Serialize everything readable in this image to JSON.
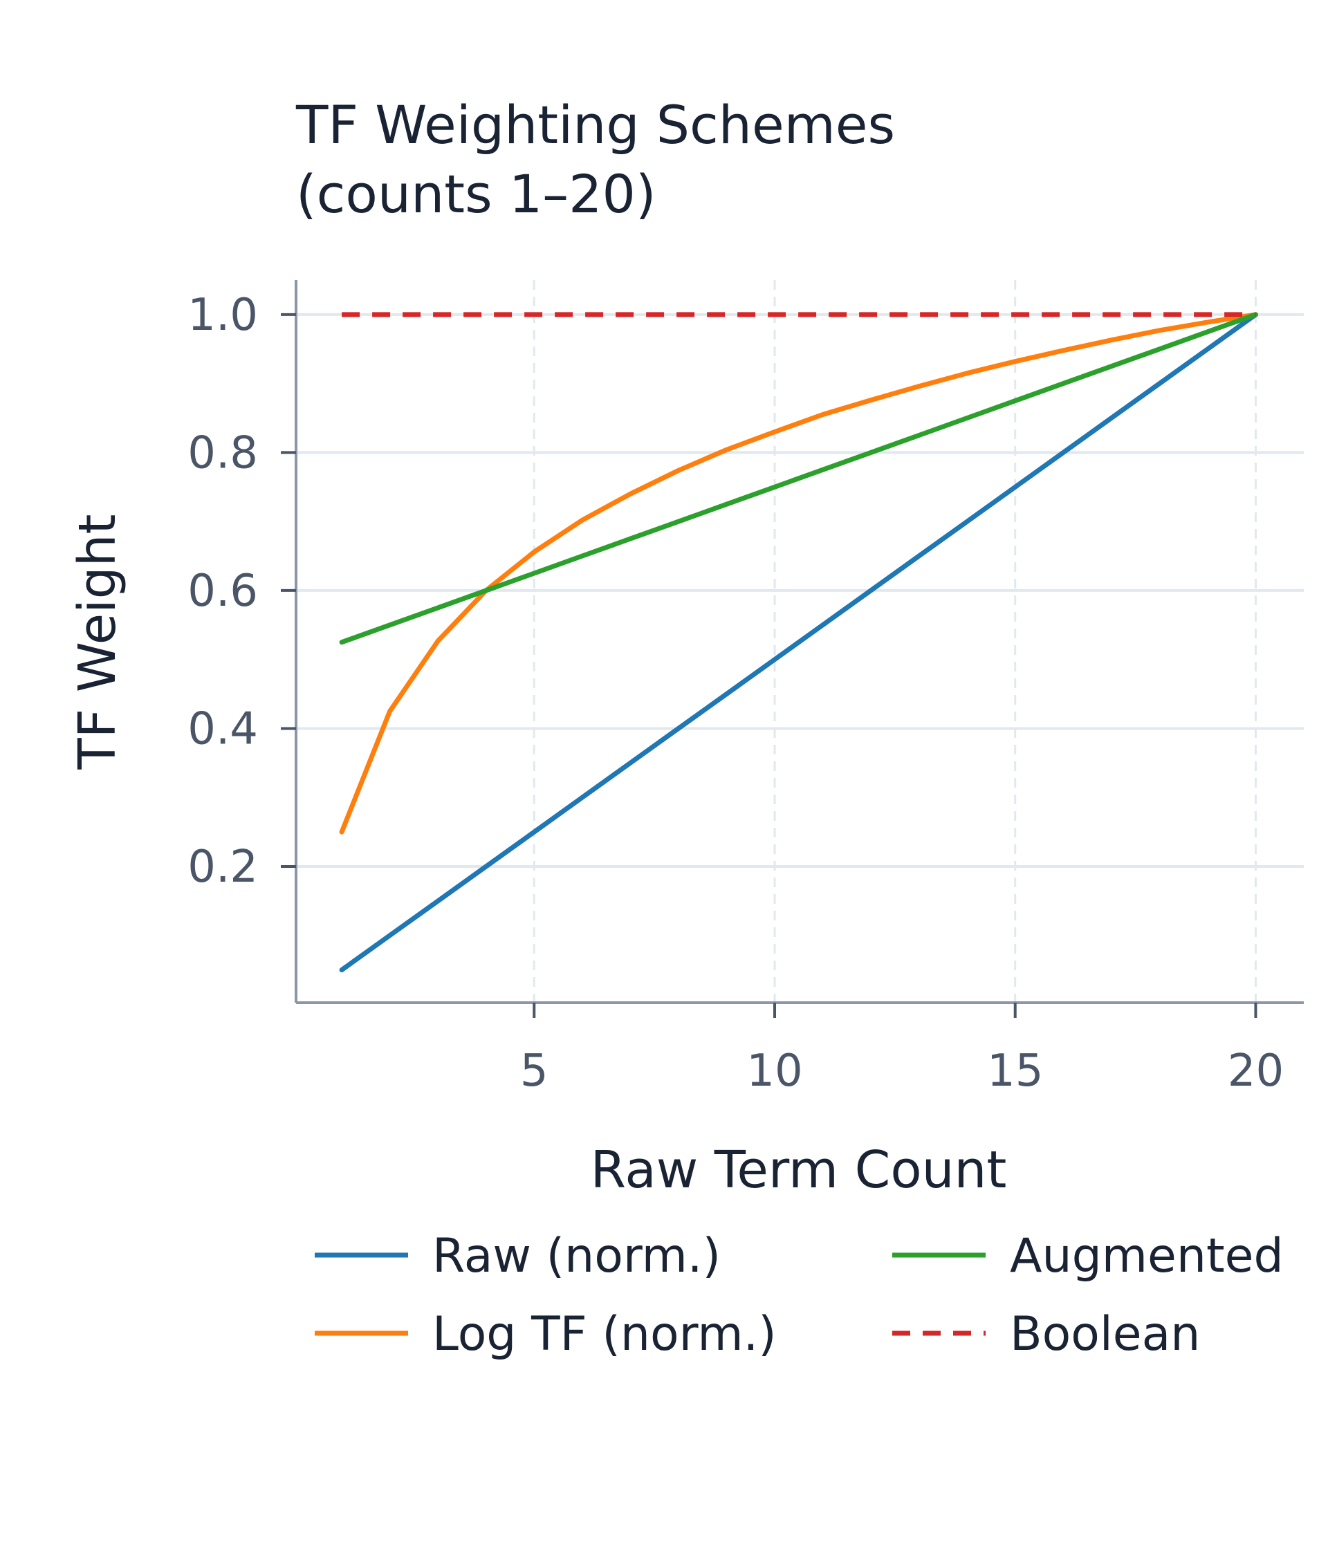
{
  "chart_data": {
    "type": "line",
    "title_lines": [
      "TF Weighting Schemes",
      "(counts 1–20)"
    ],
    "xlabel": "Raw Term Count",
    "ylabel": "TF Weight",
    "xlim": [
      0.05,
      21.0
    ],
    "ylim": [
      0.0025,
      1.05
    ],
    "xticks": [
      5,
      10,
      15,
      20
    ],
    "yticks": [
      0.2,
      0.4,
      0.6,
      0.8,
      1.0
    ],
    "ytick_labels": [
      "0.2",
      "0.4",
      "0.6",
      "0.8",
      "1.0"
    ],
    "xtick_labels": [
      "5",
      "10",
      "15",
      "20"
    ],
    "grid": true,
    "legend_position": "bottom",
    "x": [
      1,
      2,
      3,
      4,
      5,
      6,
      7,
      8,
      9,
      10,
      11,
      12,
      13,
      14,
      15,
      16,
      17,
      18,
      19,
      20
    ],
    "series": [
      {
        "name": "Raw (norm.)",
        "color": "#1f77b4",
        "dash": false,
        "values": [
          0.05,
          0.1,
          0.15,
          0.2,
          0.25,
          0.3,
          0.35,
          0.4,
          0.45,
          0.5,
          0.55,
          0.6,
          0.65,
          0.7,
          0.75,
          0.8,
          0.85,
          0.9,
          0.95,
          1.0
        ]
      },
      {
        "name": "Log TF (norm.)",
        "color": "#ff7f0e",
        "dash": false,
        "values": [
          0.25,
          0.425,
          0.527,
          0.6,
          0.656,
          0.702,
          0.74,
          0.774,
          0.804,
          0.83,
          0.855,
          0.876,
          0.896,
          0.915,
          0.932,
          0.948,
          0.963,
          0.977,
          0.989,
          1.0
        ]
      },
      {
        "name": "Augmented",
        "color": "#2ca02c",
        "dash": false,
        "values": [
          0.525,
          0.55,
          0.575,
          0.6,
          0.625,
          0.65,
          0.675,
          0.7,
          0.725,
          0.75,
          0.775,
          0.8,
          0.825,
          0.85,
          0.875,
          0.9,
          0.925,
          0.95,
          0.975,
          1.0
        ]
      },
      {
        "name": "Boolean",
        "color": "#d62728",
        "dash": true,
        "values": [
          1,
          1,
          1,
          1,
          1,
          1,
          1,
          1,
          1,
          1,
          1,
          1,
          1,
          1,
          1,
          1,
          1,
          1,
          1,
          1
        ]
      }
    ]
  }
}
